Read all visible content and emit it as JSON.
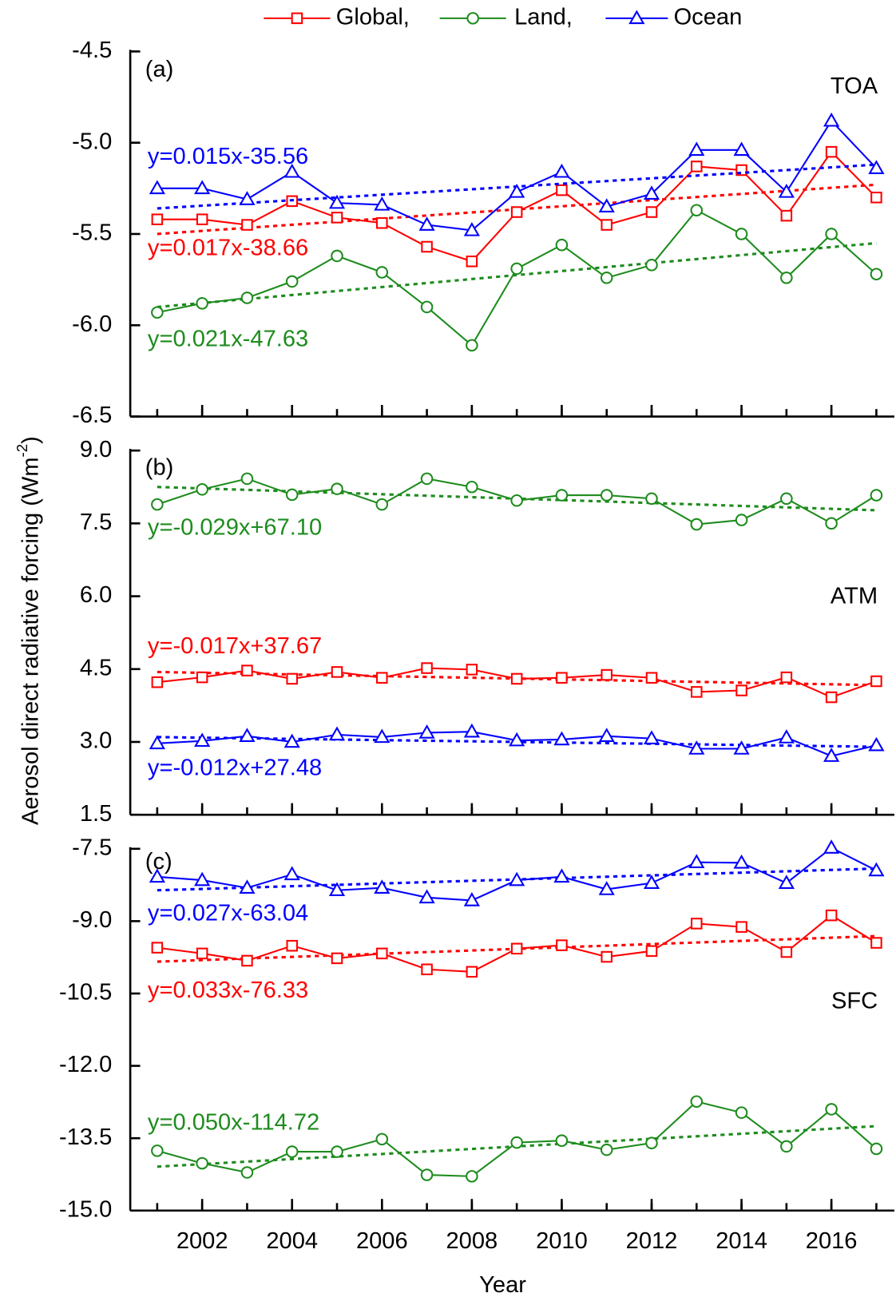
{
  "axis_labels": {
    "x": "Year",
    "y": [
      "Aerosol direct radiative forcing (Wm",
      "-2",
      ")"
    ]
  },
  "chart_data": [
    {
      "type": "line",
      "panel_label": "(a)",
      "region": "TOA",
      "x": [
        2001,
        2002,
        2003,
        2004,
        2005,
        2006,
        2007,
        2008,
        2009,
        2010,
        2011,
        2012,
        2013,
        2014,
        2015,
        2016,
        2017
      ],
      "xlim": [
        2000.4,
        2017.4
      ],
      "xticks": [
        2002,
        2004,
        2006,
        2008,
        2010,
        2012,
        2014,
        2016
      ],
      "show_xtick_labels": false,
      "ylim": [
        -6.5,
        -4.5
      ],
      "yticks": [
        -6.5,
        {
          "value": -6,
          "label": "-6.0"
        },
        -5.5,
        {
          "value": -5,
          "label": "-5.0"
        },
        -4.5
      ],
      "series": [
        {
          "name": "Global,",
          "color": "#ff0000",
          "marker": "square",
          "values": [
            -5.42,
            -5.42,
            -5.45,
            -5.32,
            -5.41,
            -5.44,
            -5.57,
            -5.65,
            -5.38,
            -5.26,
            -5.45,
            -5.38,
            -5.13,
            -5.15,
            -5.4,
            -5.05,
            -5.3
          ],
          "trend_values": [
            -5.5,
            -5.23
          ],
          "trend_label": "y=0.017x-38.66"
        },
        {
          "name": "Land,",
          "color": "#1e8c1e",
          "marker": "circle",
          "values": [
            -5.93,
            -5.88,
            -5.85,
            -5.76,
            -5.62,
            -5.71,
            -5.9,
            -6.11,
            -5.69,
            -5.56,
            -5.74,
            -5.67,
            -5.37,
            -5.5,
            -5.74,
            -5.5,
            -5.72
          ],
          "trend_values": [
            -5.9,
            -5.55
          ],
          "trend_label": "y=0.021x-47.63"
        },
        {
          "name": "Ocean",
          "color": "#0000ff",
          "marker": "triangle",
          "values": [
            -5.25,
            -5.25,
            -5.31,
            -5.16,
            -5.33,
            -5.34,
            -5.45,
            -5.48,
            -5.27,
            -5.16,
            -5.35,
            -5.28,
            -5.04,
            -5.04,
            -5.27,
            -4.88,
            -5.14
          ],
          "trend_values": [
            -5.36,
            -5.12
          ],
          "trend_label": "y=0.015x-35.56"
        }
      ]
    },
    {
      "type": "line",
      "panel_label": "(b)",
      "region": "ATM",
      "x": [
        2001,
        2002,
        2003,
        2004,
        2005,
        2006,
        2007,
        2008,
        2009,
        2010,
        2011,
        2012,
        2013,
        2014,
        2015,
        2016,
        2017
      ],
      "xlim": [
        2000.4,
        2017.4
      ],
      "xticks": [
        2002,
        2004,
        2006,
        2008,
        2010,
        2012,
        2014,
        2016
      ],
      "show_xtick_labels": false,
      "ylim": [
        1.5,
        9
      ],
      "yticks": [
        1.5,
        {
          "value": 3,
          "label": "3.0"
        },
        4.5,
        {
          "value": 6,
          "label": "6.0"
        },
        7.5,
        {
          "value": 9,
          "label": "9.0"
        }
      ],
      "series": [
        {
          "name": "Global,",
          "color": "#ff0000",
          "marker": "square",
          "values": [
            4.23,
            4.33,
            4.47,
            4.3,
            4.44,
            4.32,
            4.52,
            4.49,
            4.3,
            4.32,
            4.38,
            4.32,
            4.03,
            4.06,
            4.33,
            3.92,
            4.25
          ],
          "trend_values": [
            4.44,
            4.17
          ],
          "trend_label": "y=-0.017x+37.67"
        },
        {
          "name": "Land,",
          "color": "#1e8c1e",
          "marker": "circle",
          "values": [
            7.89,
            8.2,
            8.42,
            8.09,
            8.21,
            7.89,
            8.42,
            8.25,
            7.97,
            8.08,
            8.08,
            8.01,
            7.48,
            7.57,
            8.01,
            7.5,
            8.08
          ],
          "trend_values": [
            8.25,
            7.77
          ],
          "trend_label": "y=-0.029x+67.10"
        },
        {
          "name": "Ocean",
          "color": "#0000ff",
          "marker": "triangle",
          "values": [
            2.97,
            3.02,
            3.12,
            3.0,
            3.15,
            3.1,
            3.19,
            3.21,
            3.03,
            3.05,
            3.12,
            3.07,
            2.86,
            2.86,
            3.09,
            2.71,
            2.93
          ],
          "trend_values": [
            3.1,
            2.9
          ],
          "trend_label": "y=-0.012x+27.48"
        }
      ]
    },
    {
      "type": "line",
      "panel_label": "(c)",
      "region": "SFC",
      "x": [
        2001,
        2002,
        2003,
        2004,
        2005,
        2006,
        2007,
        2008,
        2009,
        2010,
        2011,
        2012,
        2013,
        2014,
        2015,
        2016,
        2017
      ],
      "xlim": [
        2000.4,
        2017.4
      ],
      "xticks": [
        2002,
        2004,
        2006,
        2008,
        2010,
        2012,
        2014,
        2016
      ],
      "show_xtick_labels": true,
      "ylim": [
        -15,
        -7.5
      ],
      "yticks": [
        {
          "value": -15,
          "label": "-15.0"
        },
        -13.5,
        {
          "value": -12,
          "label": "-12.0"
        },
        -10.5,
        {
          "value": -9,
          "label": "-9.0"
        },
        -7.5
      ],
      "series": [
        {
          "name": "Global,",
          "color": "#ff0000",
          "marker": "square",
          "values": [
            -9.55,
            -9.67,
            -9.82,
            -9.51,
            -9.77,
            -9.67,
            -10.0,
            -10.05,
            -9.57,
            -9.5,
            -9.74,
            -9.62,
            -9.05,
            -9.12,
            -9.64,
            -8.88,
            -9.45
          ],
          "trend_values": [
            -9.84,
            -9.31
          ],
          "trend_label": "y=0.033x-76.33"
        },
        {
          "name": "Land,",
          "color": "#1e8c1e",
          "marker": "circle",
          "values": [
            -13.76,
            -14.02,
            -14.21,
            -13.78,
            -13.78,
            -13.52,
            -14.26,
            -14.29,
            -13.59,
            -13.55,
            -13.74,
            -13.6,
            -12.74,
            -12.97,
            -13.67,
            -12.9,
            -13.72
          ],
          "trend_values": [
            -14.09,
            -13.25
          ],
          "trend_label": "y=0.050x-114.72"
        },
        {
          "name": "Ocean",
          "color": "#0000ff",
          "marker": "triangle",
          "values": [
            -8.08,
            -8.15,
            -8.31,
            -8.03,
            -8.36,
            -8.31,
            -8.51,
            -8.57,
            -8.15,
            -8.08,
            -8.34,
            -8.21,
            -7.78,
            -7.79,
            -8.21,
            -7.48,
            -7.95
          ],
          "trend_values": [
            -8.36,
            -7.91
          ],
          "trend_label": "y=0.027x-63.04"
        }
      ]
    }
  ]
}
